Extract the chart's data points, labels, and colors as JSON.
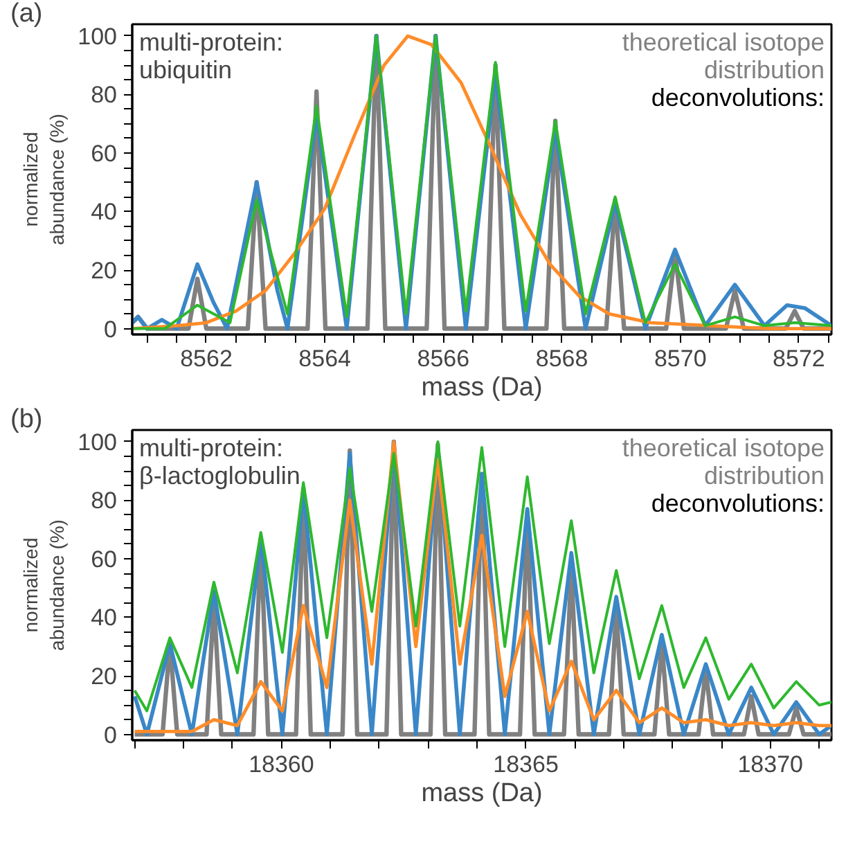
{
  "chart_data": [
    {
      "type": "line",
      "title": "(a)",
      "xlabel": "mass (Da)",
      "ylabel": "normalized\nabundance (%)",
      "legend": "top right",
      "annotations": [
        "multi-protein:\nubiquitin",
        "deconvolutions:"
      ],
      "xlim": [
        8560.75,
        8572.55
      ],
      "xticks": [
        {
          "value": 8561,
          "label": null
        },
        {
          "value": 8561.5,
          "label": null
        },
        8562,
        {
          "value": 8562.5,
          "label": null
        },
        {
          "value": 8563,
          "label": null
        },
        {
          "value": 8563.5,
          "label": null
        },
        8564,
        {
          "value": 8564.5,
          "label": null
        },
        {
          "value": 8565,
          "label": null
        },
        {
          "value": 8565.5,
          "label": null
        },
        8566,
        {
          "value": 8566.5,
          "label": null
        },
        {
          "value": 8567,
          "label": null
        },
        {
          "value": 8567.5,
          "label": null
        },
        8568,
        {
          "value": 8568.5,
          "label": null
        },
        {
          "value": 8569,
          "label": null
        },
        {
          "value": 8569.5,
          "label": null
        },
        8570,
        {
          "value": 8570.5,
          "label": null
        },
        {
          "value": 8571,
          "label": null
        },
        {
          "value": 8571.5,
          "label": null
        },
        8572,
        {
          "value": 8572.5,
          "label": null
        }
      ],
      "ylim": [
        -2,
        104
      ],
      "yticks": [
        0,
        {
          "value": 5,
          "label": null
        },
        {
          "value": 10,
          "label": null
        },
        {
          "value": 15,
          "label": null
        },
        20,
        {
          "value": 25,
          "label": null
        },
        {
          "value": 30,
          "label": null
        },
        {
          "value": 35,
          "label": null
        },
        40,
        {
          "value": 45,
          "label": null
        },
        {
          "value": 50,
          "label": null
        },
        {
          "value": 55,
          "label": null
        },
        60,
        {
          "value": 65,
          "label": null
        },
        {
          "value": 70,
          "label": null
        },
        {
          "value": 75,
          "label": null
        },
        80,
        {
          "value": 85,
          "label": null
        },
        {
          "value": 90,
          "label": null
        },
        {
          "value": 95,
          "label": null
        },
        100
      ],
      "series": [
        {
          "name": "theoretical isotope\ndistribution",
          "color": "#808080",
          "x": [
            8560.75,
            8560.85,
            8561.0,
            8561.7,
            8561.85,
            8562.0,
            8562.7,
            8562.85,
            8563.0,
            8563.71,
            8563.86,
            8564.01,
            8564.72,
            8564.87,
            8565.02,
            8565.72,
            8565.87,
            8566.02,
            8566.73,
            8566.88,
            8567.03,
            8567.74,
            8567.89,
            8568.04,
            8568.75,
            8568.9,
            8569.05,
            8569.76,
            8569.91,
            8570.06,
            8570.77,
            8570.92,
            8571.07,
            8571.78,
            8571.93,
            8572.08,
            8572.55
          ],
          "values": [
            2,
            4,
            0,
            0,
            17,
            0,
            0,
            50,
            0,
            0,
            81,
            0,
            0,
            100,
            0,
            0,
            100,
            0,
            0,
            90,
            0,
            0,
            71,
            0,
            0,
            44,
            0,
            0,
            26,
            0,
            0,
            13,
            0,
            0,
            6,
            0,
            0
          ]
        },
        {
          "color": "#3a87c8",
          "x": [
            8560.75,
            8560.85,
            8561.0,
            8561.25,
            8561.5,
            8561.85,
            8562.12,
            8562.35,
            8562.85,
            8563.2,
            8563.37,
            8563.86,
            8564.37,
            8564.87,
            8565.37,
            8565.87,
            8566.38,
            8566.88,
            8567.39,
            8567.89,
            8568.4,
            8568.9,
            8569.41,
            8569.91,
            8570.42,
            8570.92,
            8571.42,
            8571.8,
            8572.1,
            8572.55
          ],
          "values": [
            2,
            4,
            0,
            3,
            0,
            22,
            9,
            0,
            50,
            13,
            0,
            73,
            0,
            100,
            0,
            100,
            0,
            87,
            0,
            68,
            0,
            43,
            0,
            27,
            1,
            15,
            1,
            8,
            7,
            1
          ]
        },
        {
          "color": "#ff8c28",
          "x": [
            8560.75,
            8561.5,
            8562.0,
            8562.5,
            8563.0,
            8563.5,
            8564.0,
            8564.5,
            8565.0,
            8565.4,
            8565.8,
            8566.3,
            8566.8,
            8567.3,
            8567.8,
            8568.3,
            8568.8,
            8569.5,
            8570.5,
            8571.5,
            8572.55
          ],
          "values": [
            0,
            1,
            2,
            6,
            13,
            26,
            41,
            66,
            90,
            100,
            97,
            84,
            62,
            39,
            22,
            11,
            5,
            2,
            1,
            0,
            0
          ]
        },
        {
          "color": "#2eb82e",
          "x": [
            8560.75,
            8561.3,
            8561.85,
            8562.4,
            8562.85,
            8563.37,
            8563.86,
            8564.37,
            8564.87,
            8565.37,
            8565.87,
            8566.38,
            8566.88,
            8567.39,
            8567.89,
            8568.4,
            8568.9,
            8569.41,
            8569.91,
            8570.42,
            8570.92,
            8571.42,
            8571.93,
            8572.55
          ],
          "values": [
            0,
            0,
            8,
            2,
            44,
            5,
            76,
            4,
            100,
            5,
            100,
            6,
            91,
            6,
            71,
            5,
            45,
            2,
            22,
            1,
            4,
            1,
            2,
            1
          ]
        }
      ]
    },
    {
      "type": "line",
      "title": "(b)",
      "xlabel": "mass (Da)",
      "ylabel": "normalized\nabundance (%)",
      "legend": "top right",
      "annotations": [
        "multi-protein:\nβ-lactoglobulin",
        "deconvolutions:"
      ],
      "xlim": [
        18356.95,
        18371.25
      ],
      "xticks": [
        {
          "value": 18357,
          "label": null
        },
        {
          "value": 18358,
          "label": null
        },
        {
          "value": 18359,
          "label": null
        },
        18360,
        {
          "value": 18361,
          "label": null
        },
        {
          "value": 18362,
          "label": null
        },
        {
          "value": 18363,
          "label": null
        },
        {
          "value": 18364,
          "label": null
        },
        18365,
        {
          "value": 18366,
          "label": null
        },
        {
          "value": 18367,
          "label": null
        },
        {
          "value": 18368,
          "label": null
        },
        {
          "value": 18369,
          "label": null
        },
        18370,
        {
          "value": 18371,
          "label": null
        }
      ],
      "ylim": [
        -2,
        104
      ],
      "yticks": [
        0,
        {
          "value": 5,
          "label": null
        },
        {
          "value": 10,
          "label": null
        },
        {
          "value": 15,
          "label": null
        },
        20,
        {
          "value": 25,
          "label": null
        },
        {
          "value": 30,
          "label": null
        },
        {
          "value": 35,
          "label": null
        },
        40,
        {
          "value": 45,
          "label": null
        },
        {
          "value": 50,
          "label": null
        },
        {
          "value": 55,
          "label": null
        },
        60,
        {
          "value": 65,
          "label": null
        },
        {
          "value": 70,
          "label": null
        },
        {
          "value": 75,
          "label": null
        },
        80,
        {
          "value": 85,
          "label": null
        },
        {
          "value": 90,
          "label": null
        },
        {
          "value": 95,
          "label": null
        },
        100
      ],
      "series": [
        {
          "name": "theoretical isotope\ndistribution",
          "color": "#808080",
          "x": [
            18357.0,
            18357.57,
            18357.72,
            18357.87,
            18358.47,
            18358.62,
            18358.77,
            18359.43,
            18359.58,
            18359.73,
            18360.3,
            18360.45,
            18360.6,
            18361.25,
            18361.4,
            18361.55,
            18362.15,
            18362.3,
            18362.45,
            18363.05,
            18363.2,
            18363.35,
            18363.95,
            18364.1,
            18364.25,
            18364.88,
            18365.03,
            18365.18,
            18365.78,
            18365.93,
            18366.08,
            18366.7,
            18366.85,
            18367.0,
            18367.63,
            18367.78,
            18367.93,
            18368.53,
            18368.68,
            18368.83,
            18369.46,
            18369.61,
            18369.76,
            18370.38,
            18370.53,
            18370.68,
            18371.25
          ],
          "values": [
            0,
            0,
            31,
            0,
            0,
            46,
            0,
            0,
            67,
            0,
            0,
            84,
            0,
            0,
            97,
            0,
            0,
            100,
            0,
            0,
            99,
            0,
            0,
            89,
            0,
            0,
            76,
            0,
            0,
            57,
            0,
            0,
            43,
            0,
            0,
            31,
            0,
            0,
            22,
            0,
            0,
            13,
            0,
            0,
            9,
            0,
            0
          ]
        },
        {
          "color": "#3a87c8",
          "x": [
            18357.0,
            18357.25,
            18357.72,
            18358.17,
            18358.62,
            18359.1,
            18359.58,
            18360.02,
            18360.45,
            18360.93,
            18361.4,
            18361.85,
            18362.3,
            18362.75,
            18363.2,
            18363.65,
            18364.1,
            18364.57,
            18365.03,
            18365.48,
            18365.93,
            18366.39,
            18366.85,
            18367.32,
            18367.78,
            18368.23,
            18368.68,
            18369.15,
            18369.61,
            18370.07,
            18370.53,
            18371.0,
            18371.25
          ],
          "values": [
            13,
            0,
            31,
            0,
            49,
            0,
            67,
            0,
            84,
            0,
            96,
            0,
            100,
            0,
            98,
            0,
            89,
            0,
            77,
            0,
            62,
            0,
            47,
            0,
            34,
            0,
            24,
            0,
            16,
            0,
            11,
            0,
            3
          ]
        },
        {
          "color": "#ff8c28",
          "x": [
            18357.0,
            18357.25,
            18357.72,
            18358.17,
            18358.62,
            18359.1,
            18359.58,
            18360.02,
            18360.45,
            18360.93,
            18361.4,
            18361.85,
            18362.3,
            18362.75,
            18363.2,
            18363.65,
            18364.1,
            18364.57,
            18365.03,
            18365.48,
            18365.93,
            18366.39,
            18366.85,
            18367.32,
            18367.78,
            18368.23,
            18368.68,
            18369.15,
            18369.61,
            18370.07,
            18370.53,
            18371.0,
            18371.25
          ],
          "values": [
            1,
            1,
            1,
            1,
            5,
            3,
            18,
            8,
            44,
            16,
            80,
            24,
            100,
            30,
            94,
            24,
            68,
            13,
            42,
            8,
            25,
            5,
            15,
            4,
            9,
            4,
            5,
            3,
            4,
            3,
            4,
            3,
            3
          ]
        },
        {
          "color": "#2eb82e",
          "x": [
            18357.0,
            18357.25,
            18357.72,
            18358.17,
            18358.62,
            18359.1,
            18359.58,
            18360.02,
            18360.45,
            18360.93,
            18361.4,
            18361.85,
            18362.3,
            18362.75,
            18363.2,
            18363.65,
            18364.1,
            18364.57,
            18365.03,
            18365.48,
            18365.93,
            18366.39,
            18366.85,
            18367.32,
            18367.78,
            18368.23,
            18368.68,
            18369.15,
            18369.61,
            18370.07,
            18370.53,
            18371.0,
            18371.25
          ],
          "values": [
            15,
            8,
            33,
            16,
            52,
            21,
            69,
            28,
            86,
            33,
            91,
            42,
            96,
            37,
            100,
            37,
            98,
            30,
            88,
            31,
            73,
            21,
            56,
            19,
            44,
            16,
            33,
            12,
            24,
            9,
            18,
            10,
            11
          ]
        }
      ]
    }
  ]
}
